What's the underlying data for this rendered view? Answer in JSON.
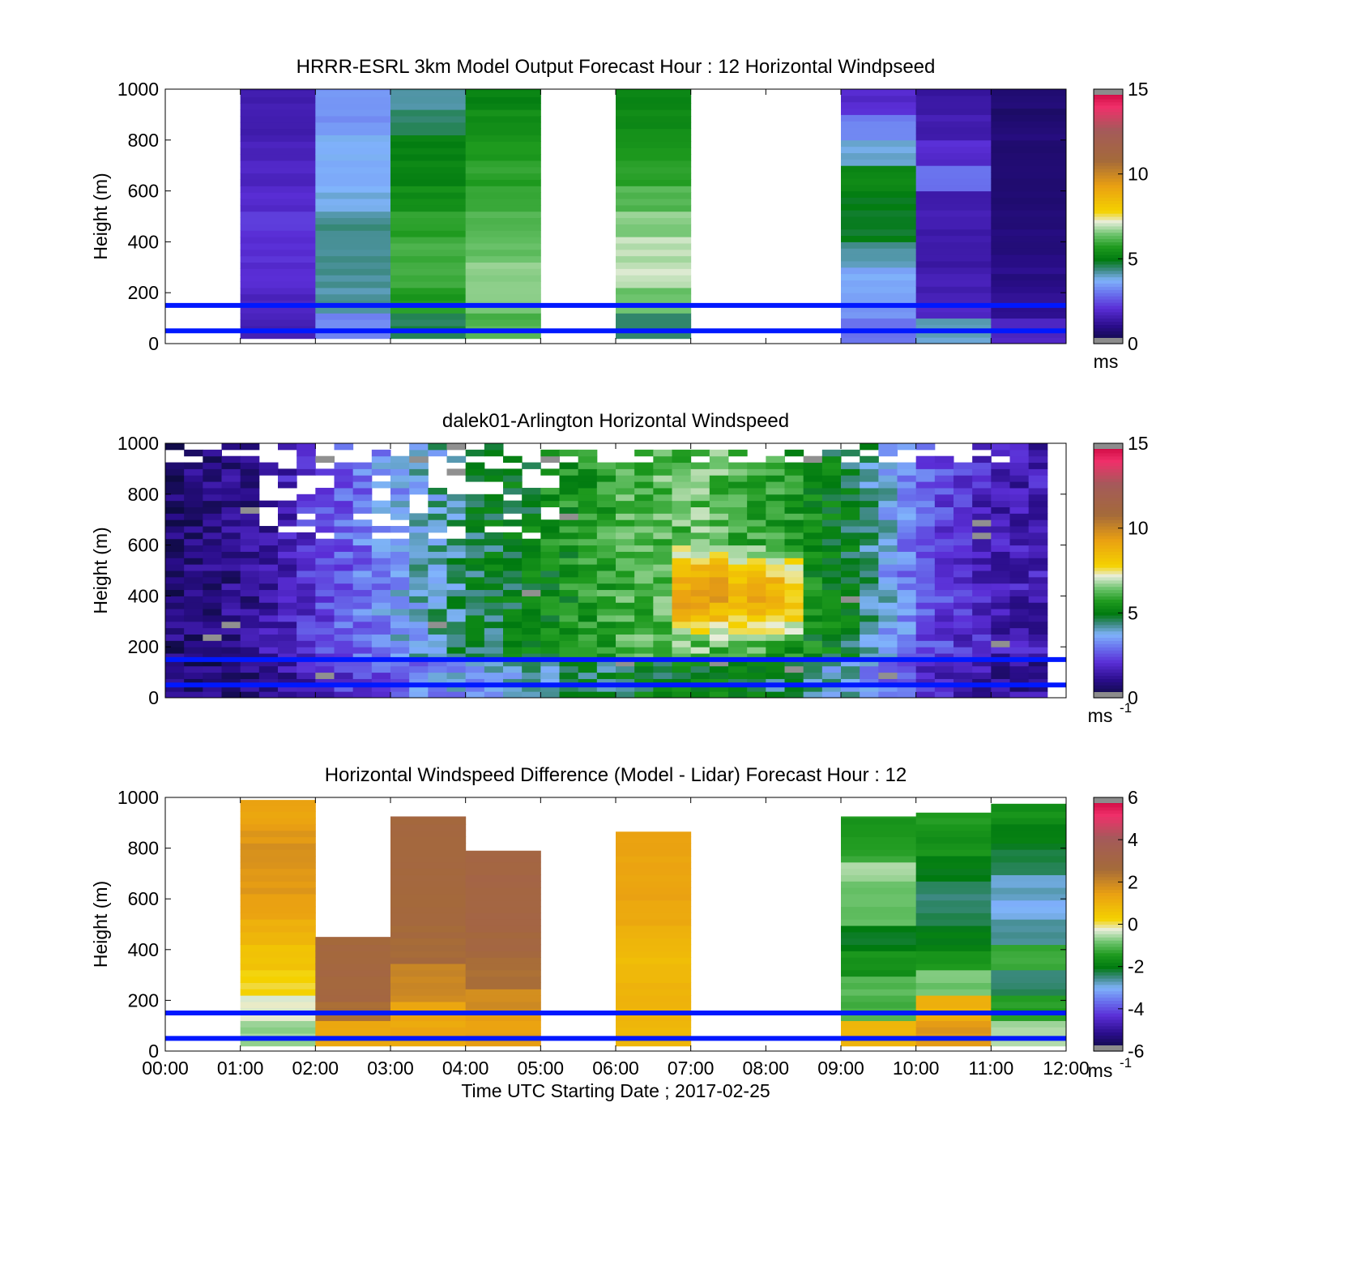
{
  "chart_data": [
    {
      "type": "heatmap",
      "title": "HRRR-ESRL 3km Model Output   Forecast Hour : 12 Horizontal Windpseed",
      "ylabel": "Height (m)",
      "xlabel": "",
      "ylim": [
        0,
        1000
      ],
      "yticks": [
        "0",
        "200",
        "400",
        "600",
        "800",
        "1000"
      ],
      "colorbar": {
        "ticks": [
          "0",
          "5",
          "10",
          "15"
        ],
        "unit": "ms",
        "unit_sup": "",
        "range": [
          0,
          15
        ]
      },
      "reference_lines_m": [
        50,
        150
      ],
      "columns": [
        {
          "hour": 0,
          "bottom": 0,
          "top": 0,
          "values": []
        },
        {
          "hour": 1,
          "bottom": 20,
          "top": 1000,
          "values": [
            1.6,
            1.8,
            2.0,
            2.1,
            2.2,
            2.0,
            1.8,
            1.7,
            1.6,
            1.5
          ]
        },
        {
          "hour": 2,
          "bottom": 20,
          "top": 1000,
          "values": [
            3.2,
            4.2,
            4.3,
            4.3,
            4.3,
            3.9,
            3.7,
            3.7,
            3.4,
            3.4
          ]
        },
        {
          "hour": 3,
          "bottom": 20,
          "top": 1000,
          "values": [
            4.6,
            5.7,
            6.0,
            6.0,
            5.8,
            5.4,
            5.2,
            5.1,
            4.6,
            4.1
          ]
        },
        {
          "hour": 4,
          "bottom": 20,
          "top": 1000,
          "values": [
            6.2,
            6.6,
            6.6,
            6.4,
            6.2,
            6.0,
            5.8,
            5.6,
            5.4,
            5.2
          ]
        },
        {
          "hour": 5,
          "bottom": 0,
          "top": 0,
          "values": []
        },
        {
          "hour": 6,
          "bottom": 20,
          "top": 1000,
          "values": [
            4.6,
            6.4,
            7.0,
            6.9,
            6.6,
            6.2,
            5.8,
            5.6,
            5.4,
            5.2
          ]
        },
        {
          "hour": 7,
          "bottom": 0,
          "top": 0,
          "values": []
        },
        {
          "hour": 8,
          "bottom": 0,
          "top": 0,
          "values": []
        },
        {
          "hour": 9,
          "bottom": 0,
          "top": 1000,
          "values": [
            3.0,
            3.4,
            3.6,
            4.2,
            4.9,
            4.9,
            5.2,
            3.9,
            3.2,
            2.0
          ]
        },
        {
          "hour": 10,
          "bottom": 0,
          "top": 1000,
          "values": [
            4.0,
            1.8,
            1.6,
            1.4,
            1.5,
            1.6,
            3.0,
            2.0,
            1.6,
            1.4
          ]
        },
        {
          "hour": 11,
          "bottom": 0,
          "top": 1000,
          "values": [
            1.8,
            1.2,
            1.0,
            0.9,
            0.8,
            0.7,
            0.7,
            0.8,
            0.8,
            0.7
          ]
        }
      ]
    },
    {
      "type": "heatmap",
      "title": "dalek01-Arlington  Horizontal Windspeed",
      "ylabel": "Height (m)",
      "xlabel": "",
      "ylim": [
        0,
        1000
      ],
      "yticks": [
        "0",
        "200",
        "400",
        "600",
        "800",
        "1000"
      ],
      "colorbar": {
        "ticks": [
          "0",
          "5",
          "10",
          "15"
        ],
        "unit": "ms",
        "unit_sup": "-1",
        "range": [
          0,
          15
        ]
      },
      "reference_lines_m": [
        50,
        150
      ],
      "time_step_hours": 0.25,
      "height_step_m": 25,
      "approx_profile_by_hour": [
        {
          "hour": 0.0,
          "speed_ms": 0.8
        },
        {
          "hour": 1.0,
          "speed_ms": 1.1
        },
        {
          "hour": 2.0,
          "speed_ms": 2.4
        },
        {
          "hour": 3.0,
          "speed_ms": 3.6
        },
        {
          "hour": 4.0,
          "speed_ms": 4.6
        },
        {
          "hour": 5.0,
          "speed_ms": 5.3
        },
        {
          "hour": 6.0,
          "speed_ms": 6.0
        },
        {
          "hour": 7.0,
          "speed_ms": 6.4
        },
        {
          "hour": 8.0,
          "speed_ms": 5.8
        },
        {
          "hour": 9.0,
          "speed_ms": 4.8
        },
        {
          "hour": 10.0,
          "speed_ms": 2.6
        },
        {
          "hour": 11.0,
          "speed_ms": 1.6
        },
        {
          "hour": 11.75,
          "speed_ms": 1.6
        }
      ]
    },
    {
      "type": "heatmap",
      "title": "Horizontal Windspeed Difference (Model - Lidar) Forecast Hour : 12",
      "ylabel": "Height (m)",
      "xlabel": "Time UTC  Starting Date ; 2017-02-25",
      "ylim": [
        0,
        1000
      ],
      "yticks": [
        "0",
        "200",
        "400",
        "600",
        "800",
        "1000"
      ],
      "xticks": [
        "00:00",
        "01:00",
        "02:00",
        "03:00",
        "04:00",
        "05:00",
        "06:00",
        "07:00",
        "08:00",
        "09:00",
        "10:00",
        "11:00",
        "12:00"
      ],
      "colorbar": {
        "ticks": [
          "-6",
          "-4",
          "-2",
          "0",
          "2",
          "4",
          "6"
        ],
        "unit": "ms",
        "unit_sup": "-1",
        "range": [
          -6,
          6
        ]
      },
      "reference_lines_m": [
        50,
        150
      ],
      "columns": [
        {
          "hour": 1,
          "bottom": 20,
          "top": 990,
          "values": [
            -0.6,
            -0.3,
            0.2,
            0.6,
            1.0,
            1.3,
            1.6,
            1.8,
            1.6,
            1.3
          ]
        },
        {
          "hour": 2,
          "bottom": 20,
          "top": 450,
          "values": [
            1.2,
            2.6,
            2.9,
            2.9,
            2.8
          ]
        },
        {
          "hour": 3,
          "bottom": 20,
          "top": 925,
          "values": [
            1.3,
            2.0,
            2.7,
            2.8,
            2.8,
            2.9
          ]
        },
        {
          "hour": 4,
          "bottom": 20,
          "top": 790,
          "values": [
            1.4,
            1.9,
            2.6,
            2.9,
            3.0,
            3.1,
            3.1
          ]
        },
        {
          "hour": 6,
          "bottom": 20,
          "top": 865,
          "values": [
            0.9,
            1.0,
            0.9,
            0.8,
            1.0,
            1.3,
            1.4,
            1.4,
            1.3
          ]
        },
        {
          "hour": 9,
          "bottom": 20,
          "top": 925,
          "values": [
            1.0,
            -1.1,
            -1.0,
            -1.6,
            -2.1,
            -0.9,
            -0.9,
            -0.6,
            -1.3,
            -1.5
          ]
        },
        {
          "hour": 10,
          "bottom": 20,
          "top": 940,
          "values": [
            1.6,
            1.0,
            -0.8,
            -1.5,
            -2.0,
            -2.3,
            -2.4,
            -2.0,
            -1.6,
            -1.4
          ]
        },
        {
          "hour": 11,
          "bottom": 20,
          "top": 975,
          "values": [
            -0.5,
            -1.4,
            -2.4,
            -1.2,
            -2.6,
            -3.0,
            -2.8,
            -2.3,
            -2.0,
            -1.6
          ]
        }
      ]
    }
  ]
}
